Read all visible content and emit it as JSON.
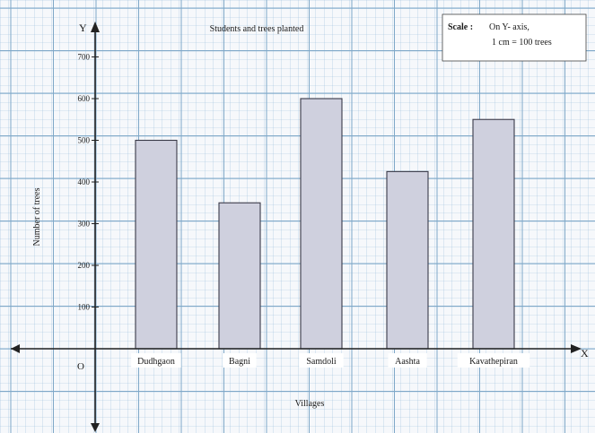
{
  "chart_data": {
    "type": "bar",
    "title": "Students and trees planted",
    "xlabel": "Villages",
    "ylabel": "Number of trees",
    "x_axis_letter": "X",
    "y_axis_letter": "Y",
    "origin_label": "O",
    "categories": [
      "Dudhgaon",
      "Bagni",
      "Samdoli",
      "Aashta",
      "Kavathepiran"
    ],
    "values": [
      500,
      350,
      600,
      425,
      550
    ],
    "yticks": [
      100,
      200,
      300,
      400,
      500,
      600,
      700
    ],
    "ylim": [
      0,
      800
    ],
    "grid": true,
    "bar_color": "#cfd0de",
    "grid_color": "#7fa8c8",
    "scale_note": {
      "heading": "Scale :",
      "line1": "On Y- axis,",
      "line2": "1 cm = 100 trees"
    }
  }
}
